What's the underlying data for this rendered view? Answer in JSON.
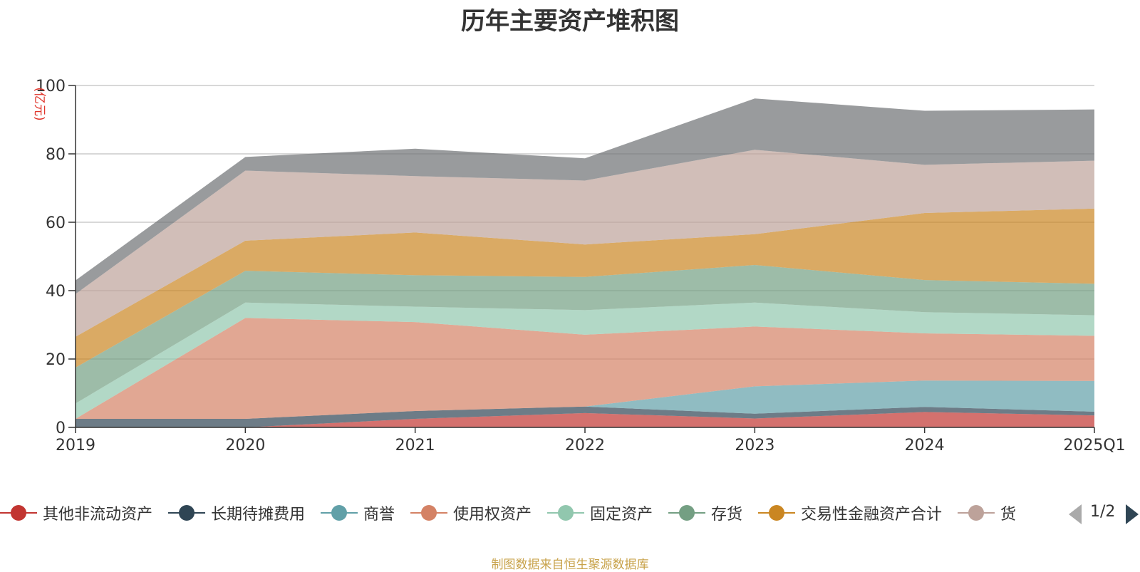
{
  "chart_data": {
    "type": "area",
    "stacked": true,
    "title": "历年主要资产堆积图",
    "ylabel": "(亿元)",
    "ylim": [
      0,
      100
    ],
    "yticks": [
      0,
      20,
      40,
      60,
      80,
      100
    ],
    "grid": true,
    "categories": [
      "2019",
      "2020",
      "2021",
      "2022",
      "2023",
      "2024",
      "2025Q1"
    ],
    "series": [
      {
        "name": "其他非流动资产",
        "color": "#c23531",
        "values": [
          0,
          0,
          2.5,
          4.2,
          2.6,
          4.5,
          3.5
        ]
      },
      {
        "name": "长期待摊费用",
        "color": "#2f4554",
        "values": [
          2.5,
          2.5,
          2.3,
          1.9,
          1.4,
          1.5,
          1.1
        ]
      },
      {
        "name": "商誉",
        "color": "#61a0a8",
        "values": [
          0,
          0,
          0,
          0,
          8.0,
          7.7,
          9.0
        ]
      },
      {
        "name": "使用权资产",
        "color": "#d48265",
        "values": [
          0,
          29.5,
          26.0,
          21.0,
          17.5,
          13.8,
          13.2
        ]
      },
      {
        "name": "固定资产",
        "color": "#91c7ae",
        "values": [
          4.5,
          4.5,
          4.5,
          7.2,
          7.0,
          6.2,
          6.0
        ]
      },
      {
        "name": "存货",
        "color": "#749f83",
        "values": [
          10.5,
          9.3,
          9.2,
          9.7,
          11.0,
          9.4,
          9.2
        ]
      },
      {
        "name": "交易性金融资产合计",
        "color": "#ca8622",
        "values": [
          9.0,
          8.8,
          12.5,
          9.5,
          9.0,
          19.6,
          22.0
        ]
      },
      {
        "name": "货",
        "color": "#bda29a",
        "values": [
          12.5,
          20.5,
          16.5,
          18.7,
          24.7,
          14.1,
          14.0
        ]
      },
      {
        "name": "",
        "color": "#6e7074",
        "values": [
          4.0,
          4.0,
          8.0,
          6.5,
          15.0,
          15.8,
          15.0
        ]
      }
    ]
  },
  "legend": {
    "page": "1/2",
    "items": [
      {
        "label": "其他非流动资产",
        "color": "#c23531"
      },
      {
        "label": "长期待摊费用",
        "color": "#2f4554"
      },
      {
        "label": "商誉",
        "color": "#61a0a8"
      },
      {
        "label": "使用权资产",
        "color": "#d48265"
      },
      {
        "label": "固定资产",
        "color": "#91c7ae"
      },
      {
        "label": "存货",
        "color": "#749f83"
      },
      {
        "label": "交易性金融资产合计",
        "color": "#ca8622"
      },
      {
        "label": "货",
        "color": "#bda29a"
      }
    ]
  },
  "source": "制图数据来自恒生聚源数据库"
}
